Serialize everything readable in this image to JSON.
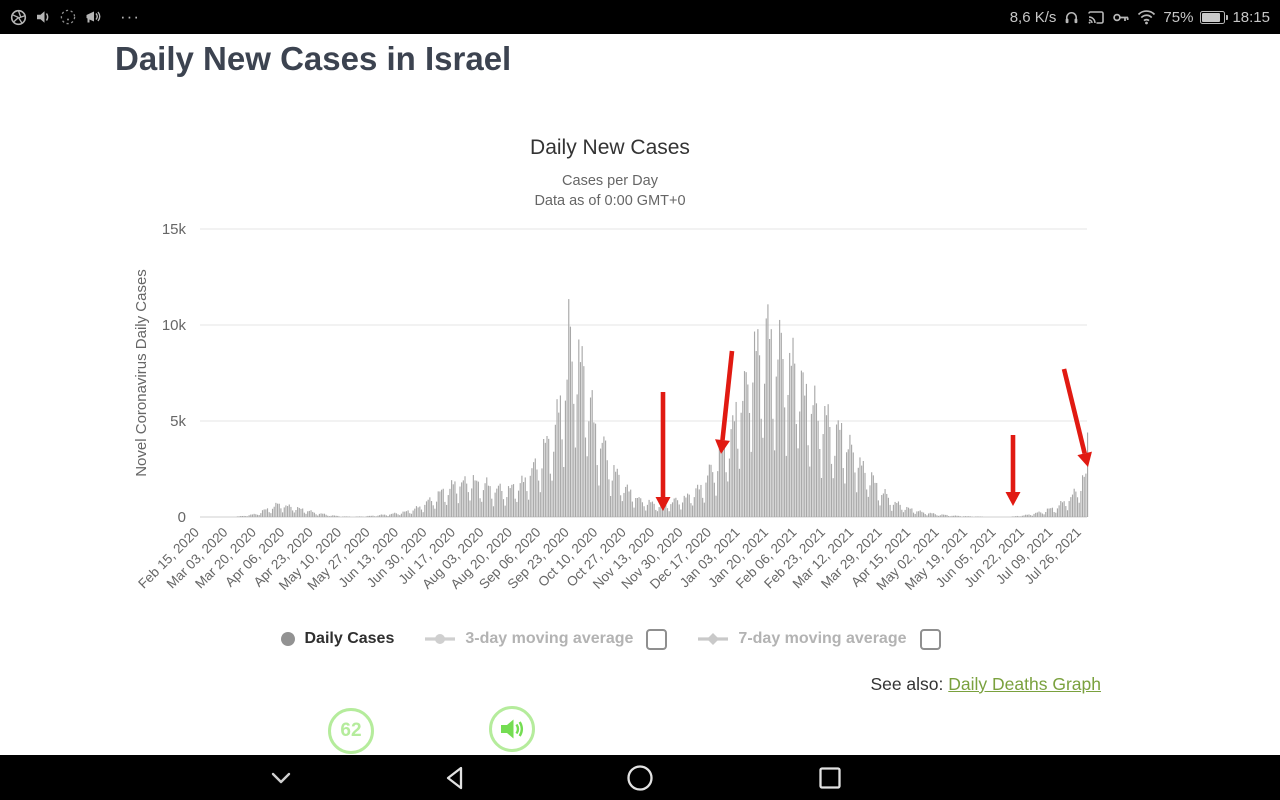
{
  "status_bar": {
    "left_icons": [
      "aperture-icon",
      "volume-icon",
      "dotted-circle-icon",
      "megaphone-icon"
    ],
    "more_indicator": "···",
    "net_speed": "8,6 K/s",
    "right_icons": [
      "headset-icon",
      "cast-icon",
      "key-icon",
      "wifi-icon"
    ],
    "battery_percent": "75%",
    "battery_level": 0.75,
    "time": "18:15"
  },
  "page": {
    "title": "Daily New Cases in Israel"
  },
  "chart_data": {
    "type": "bar",
    "title": "Daily New Cases",
    "subtitle1": "Cases per Day",
    "subtitle2": "Data as of 0:00 GMT+0",
    "ylabel": "Novel Coronavirus Daily Cases",
    "series_name": "Daily Cases",
    "ylim": [
      0,
      15000
    ],
    "yticks": [
      {
        "label": "0",
        "value": 0
      },
      {
        "label": "5k",
        "value": 5000
      },
      {
        "label": "10k",
        "value": 10000
      },
      {
        "label": "15k",
        "value": 15000
      }
    ],
    "x_range": [
      "2020-02-15",
      "2021-07-29"
    ],
    "tick_interval_days": 17,
    "xtick_labels": [
      "Feb 15, 2020",
      "Mar 03, 2020",
      "Mar 20, 2020",
      "Apr 06, 2020",
      "Apr 23, 2020",
      "May 10, 2020",
      "May 27, 2020",
      "Jun 13, 2020",
      "Jun 30, 2020",
      "Jul 17, 2020",
      "Aug 03, 2020",
      "Aug 20, 2020",
      "Sep 06, 2020",
      "Sep 23, 2020",
      "Oct 10, 2020",
      "Oct 27, 2020",
      "Nov 13, 2020",
      "Nov 30, 2020",
      "Dec 17, 2020",
      "Jan 03, 2021",
      "Jan 20, 2021",
      "Feb 06, 2021",
      "Feb 23, 2021",
      "Mar 12, 2021",
      "Mar 29, 2021",
      "Apr 15, 2021",
      "May 02, 2021",
      "May 19, 2021",
      "Jun 05, 2021",
      "Jun 22, 2021",
      "Jul 09, 2021",
      "Jul 26, 2021"
    ],
    "bar_color": "#a8a8a8",
    "arrow_color": "#e11a12",
    "grid_color": "#e6e6e6",
    "axis_line_color": "#cfcfcf",
    "keypoints": [
      [
        "2020-02-15",
        2
      ],
      [
        "2020-02-27",
        3
      ],
      [
        "2020-03-05",
        15
      ],
      [
        "2020-03-12",
        60
      ],
      [
        "2020-03-19",
        160
      ],
      [
        "2020-03-25",
        380
      ],
      [
        "2020-04-02",
        680
      ],
      [
        "2020-04-08",
        560
      ],
      [
        "2020-04-16",
        420
      ],
      [
        "2020-04-23",
        240
      ],
      [
        "2020-05-01",
        110
      ],
      [
        "2020-05-08",
        40
      ],
      [
        "2020-05-16",
        18
      ],
      [
        "2020-05-23",
        35
      ],
      [
        "2020-05-30",
        80
      ],
      [
        "2020-06-06",
        140
      ],
      [
        "2020-06-13",
        220
      ],
      [
        "2020-06-20",
        360
      ],
      [
        "2020-06-27",
        650
      ],
      [
        "2020-07-04",
        1050
      ],
      [
        "2020-07-11",
        1450
      ],
      [
        "2020-07-17",
        1800
      ],
      [
        "2020-07-24",
        1950
      ],
      [
        "2020-07-31",
        1800
      ],
      [
        "2020-08-07",
        1550
      ],
      [
        "2020-08-14",
        1400
      ],
      [
        "2020-08-21",
        1600
      ],
      [
        "2020-08-28",
        2100
      ],
      [
        "2020-09-04",
        3000
      ],
      [
        "2020-09-10",
        3900
      ],
      [
        "2020-09-16",
        5300
      ],
      [
        "2020-09-20",
        7200
      ],
      [
        "2020-09-23",
        8800
      ],
      [
        "2020-09-27",
        8200
      ],
      [
        "2020-09-30",
        8400
      ],
      [
        "2020-10-04",
        6200
      ],
      [
        "2020-10-08",
        4800
      ],
      [
        "2020-10-13",
        3600
      ],
      [
        "2020-10-18",
        2600
      ],
      [
        "2020-10-23",
        1900
      ],
      [
        "2020-10-28",
        1400
      ],
      [
        "2020-11-03",
        950
      ],
      [
        "2020-11-08",
        780
      ],
      [
        "2020-11-13",
        680
      ],
      [
        "2020-11-18",
        720
      ],
      [
        "2020-11-23",
        830
      ],
      [
        "2020-11-29",
        980
      ],
      [
        "2020-12-05",
        1250
      ],
      [
        "2020-12-11",
        1700
      ],
      [
        "2020-12-17",
        2600
      ],
      [
        "2020-12-23",
        3600
      ],
      [
        "2020-12-29",
        4700
      ],
      [
        "2021-01-04",
        6600
      ],
      [
        "2021-01-09",
        8200
      ],
      [
        "2021-01-14",
        9000
      ],
      [
        "2021-01-19",
        9300
      ],
      [
        "2021-01-24",
        8800
      ],
      [
        "2021-01-29",
        8300
      ],
      [
        "2021-02-03",
        8100
      ],
      [
        "2021-02-08",
        7200
      ],
      [
        "2021-02-13",
        6100
      ],
      [
        "2021-02-18",
        5600
      ],
      [
        "2021-02-23",
        5000
      ],
      [
        "2021-03-01",
        4500
      ],
      [
        "2021-03-07",
        4100
      ],
      [
        "2021-03-12",
        3300
      ],
      [
        "2021-03-18",
        2500
      ],
      [
        "2021-03-24",
        1800
      ],
      [
        "2021-03-29",
        1250
      ],
      [
        "2021-04-04",
        800
      ],
      [
        "2021-04-10",
        550
      ],
      [
        "2021-04-16",
        380
      ],
      [
        "2021-04-22",
        250
      ],
      [
        "2021-04-28",
        170
      ],
      [
        "2021-05-04",
        110
      ],
      [
        "2021-05-10",
        70
      ],
      [
        "2021-05-16",
        45
      ],
      [
        "2021-05-22",
        30
      ],
      [
        "2021-05-28",
        18
      ],
      [
        "2021-06-03",
        12
      ],
      [
        "2021-06-09",
        14
      ],
      [
        "2021-06-15",
        30
      ],
      [
        "2021-06-21",
        90
      ],
      [
        "2021-06-27",
        180
      ],
      [
        "2021-07-03",
        320
      ],
      [
        "2021-07-09",
        480
      ],
      [
        "2021-07-15",
        780
      ],
      [
        "2021-07-20",
        1150
      ],
      [
        "2021-07-24",
        1650
      ],
      [
        "2021-07-27",
        2100
      ],
      [
        "2021-07-29",
        2400
      ]
    ],
    "spikes": [
      [
        "2020-09-22",
        11350
      ],
      [
        "2020-09-30",
        8900
      ],
      [
        "2021-07-29",
        4400
      ]
    ],
    "weekday_factors": [
      0.8,
      1.04,
      1.1,
      1.07,
      1.0,
      0.62,
      0.42
    ],
    "annotations": [
      {
        "from": [
          543,
          177
        ],
        "to": [
          543,
          296
        ]
      },
      {
        "from": [
          612,
          136
        ],
        "to": [
          601,
          239
        ]
      },
      {
        "from": [
          893,
          220
        ],
        "to": [
          893,
          291
        ]
      },
      {
        "from": [
          944,
          154
        ],
        "to": [
          968,
          252
        ]
      }
    ],
    "legend_position": "bottom-center",
    "grid": true
  },
  "legend": {
    "daily_cases_label": "Daily Cases",
    "ma3_label": "3-day moving average",
    "ma7_label": "7-day moving average",
    "ma3_checked": false,
    "ma7_checked": false
  },
  "see_also": {
    "prefix": "See also:",
    "link_label": "Daily Deaths Graph",
    "link_color": "#7aa13e"
  },
  "overlay_buttons": {
    "counter_value": "62",
    "accent_color": "#b5ec9c"
  },
  "nav_bar": {
    "icons": [
      "chevron-down",
      "back",
      "home",
      "recents"
    ]
  }
}
